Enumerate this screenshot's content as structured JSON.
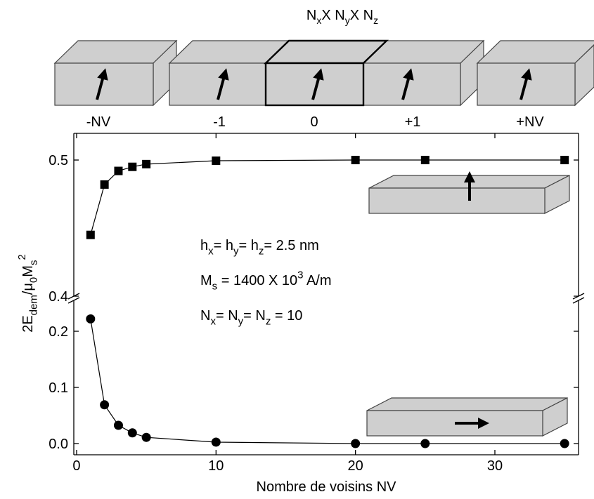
{
  "diagram": {
    "title": [
      {
        "text": "N"
      },
      {
        "text": "x",
        "sub": true
      },
      {
        "text": "X N"
      },
      {
        "text": "y",
        "sub": true
      },
      {
        "text": "X N"
      },
      {
        "text": "z",
        "sub": true
      }
    ],
    "cells": [
      "-NV",
      "-1",
      "0",
      "+1",
      "+NV"
    ]
  },
  "chart_data": [
    {
      "type": "line",
      "x": [
        1,
        2,
        3,
        4,
        5,
        10,
        20,
        25,
        35
      ],
      "series": [
        {
          "color": "#000000",
          "marker": "square",
          "values": [
            0.445,
            0.482,
            0.492,
            0.495,
            0.497,
            0.4995,
            0.5,
            0.5,
            0.5
          ]
        }
      ],
      "xlim": [
        -0.2,
        36
      ],
      "xticks": [
        0,
        10,
        20,
        30
      ],
      "ylim": [
        0.4,
        0.5196
      ],
      "yticks": [
        0.4,
        0.5
      ],
      "ylabel": [
        {
          "text": "2E"
        },
        {
          "text": "dem",
          "sub": true
        },
        {
          "text": "/μ"
        },
        {
          "text": "0",
          "sub": true
        },
        {
          "text": "M"
        },
        {
          "text": "s",
          "sub": true
        },
        {
          "text": "2",
          "sup": true
        }
      ],
      "annotations": [
        [
          {
            "text": "h"
          },
          {
            "text": "x",
            "sub": true
          },
          {
            "text": "= h"
          },
          {
            "text": "y",
            "sub": true
          },
          {
            "text": "= h"
          },
          {
            "text": "z",
            "sub": true
          },
          {
            "text": "= 2.5 nm"
          }
        ],
        [
          {
            "text": "M"
          },
          {
            "text": "s",
            "sub": true
          },
          {
            "text": " = 1400 X 10"
          },
          {
            "text": "3",
            "sup": true
          },
          {
            "text": " A/m"
          }
        ],
        [
          {
            "text": "N"
          },
          {
            "text": "x",
            "sub": true
          },
          {
            "text": "= N"
          },
          {
            "text": "y",
            "sub": true
          },
          {
            "text": "= N"
          },
          {
            "text": "z",
            "sub": true
          },
          {
            "text": " = 10"
          }
        ]
      ]
    },
    {
      "type": "line",
      "x": [
        1,
        2,
        3,
        4,
        5,
        10,
        20,
        25,
        35
      ],
      "series": [
        {
          "color": "#000000",
          "marker": "circle",
          "values": [
            0.222,
            0.069,
            0.0325,
            0.019,
            0.011,
            0.0025,
            0.0,
            0.0,
            0.0
          ]
        }
      ],
      "xlim": [
        -0.2,
        36
      ],
      "xticks": [
        0,
        10,
        20,
        30
      ],
      "ylim": [
        -0.02,
        0.255
      ],
      "yticks": [
        {
          "value": 0,
          "label": "0.0"
        },
        0.1,
        0.2
      ],
      "xlabel": "Nombre de voisins NV"
    }
  ]
}
